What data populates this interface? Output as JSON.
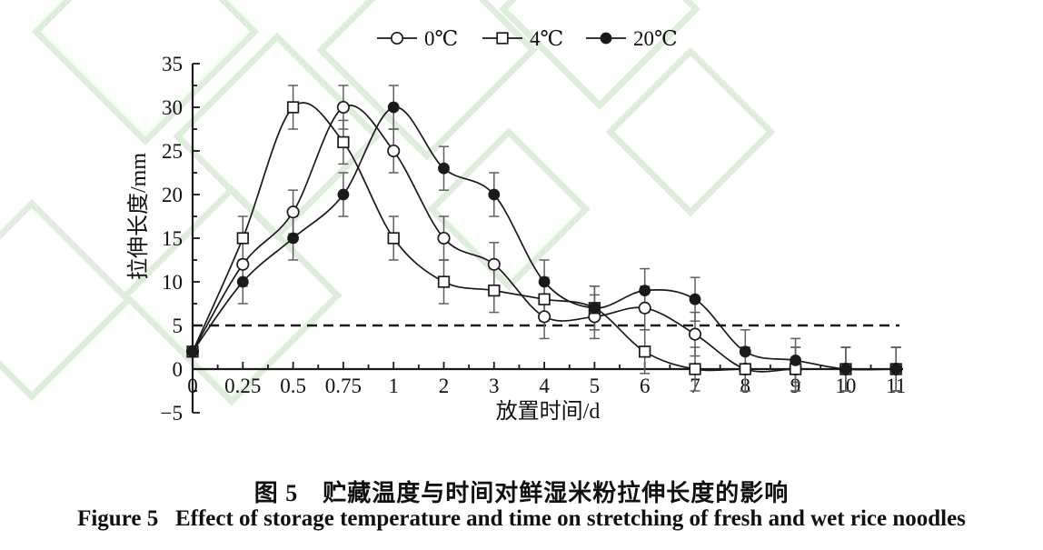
{
  "figure": {
    "caption_zh": "图 5　贮藏温度与时间对鲜湿米粉拉伸长度的影响",
    "caption_en": "Figure 5   Effect of storage temperature and time on stretching of fresh and wet rice noodles"
  },
  "chart_data": {
    "type": "line",
    "title": "",
    "xlabel": "放置时间/d",
    "ylabel": "拉伸长度/mm",
    "categories": [
      "0",
      "0.25",
      "0.5",
      "0.75",
      "1",
      "2",
      "3",
      "4",
      "5",
      "6",
      "7",
      "8",
      "9",
      "10",
      "11"
    ],
    "y_tick_labels": [
      "−5",
      "0",
      "5",
      "10",
      "15",
      "20",
      "25",
      "30",
      "35"
    ],
    "ylim": [
      -5,
      35
    ],
    "y_major_step": 5,
    "y_minor_step": 2.5,
    "reference_line_y": 5,
    "grid": false,
    "legend_position": "top-center",
    "series": [
      {
        "name": "0℃",
        "marker": "open-circle",
        "values": [
          2,
          12,
          18,
          30,
          25,
          15,
          12,
          6,
          6,
          7,
          4,
          0,
          0,
          0,
          0
        ],
        "errors": [
          0,
          2.5,
          2.5,
          2.5,
          2.5,
          2.5,
          2.5,
          2.5,
          2.5,
          2.5,
          2.5,
          2.5,
          2.5,
          2.5,
          2.5
        ]
      },
      {
        "name": "4℃",
        "marker": "open-square",
        "values": [
          2,
          15,
          30,
          26,
          15,
          10,
          9,
          8,
          7,
          2,
          0,
          0,
          0,
          0,
          0
        ],
        "errors": [
          0,
          2.5,
          2.5,
          2.5,
          2.5,
          2.5,
          2.5,
          2.5,
          2.5,
          2.5,
          2.5,
          2.5,
          2.5,
          2.5,
          2.5
        ]
      },
      {
        "name": "20℃",
        "marker": "filled-circle",
        "values": [
          2,
          10,
          15,
          20,
          30,
          23,
          20,
          10,
          7,
          9,
          8,
          2,
          1,
          0,
          0
        ],
        "errors": [
          0,
          2.5,
          2.5,
          2.5,
          2.5,
          2.5,
          2.5,
          2.5,
          2.5,
          2.5,
          2.5,
          2.5,
          2.5,
          2.5,
          2.5
        ]
      }
    ],
    "colors": {
      "line": "#1a1a1a",
      "error_bar": "#5f5f5f",
      "reference_line": "#1a1a1a",
      "axis": "#1a1a1a",
      "watermark": "#dcecd8"
    }
  }
}
